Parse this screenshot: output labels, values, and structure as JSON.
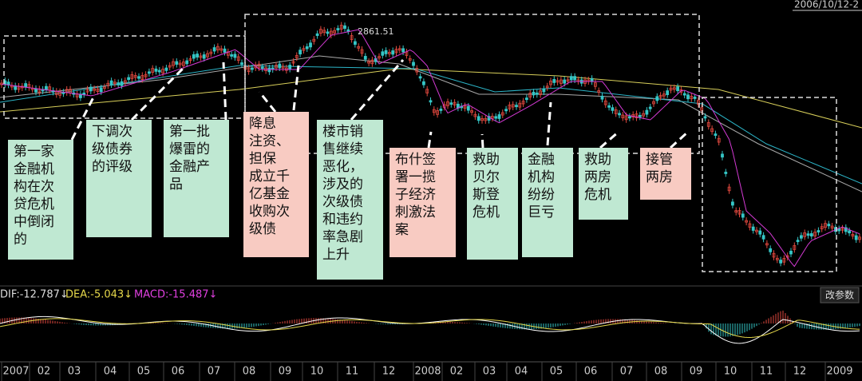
{
  "header": {
    "date": "2006/10/12-2",
    "price_label": "2861.51"
  },
  "annotations": [
    {
      "lines": [
        "第一家",
        "金融机",
        "构在次",
        "贷危机",
        "中倒闭",
        "的"
      ],
      "color": "#bfe8d2"
    },
    {
      "lines": [
        "下调次",
        "级债券",
        "的评级"
      ],
      "color": "#bfe8d2"
    },
    {
      "lines": [
        "第一批",
        "爆雷的",
        "金融产",
        "品"
      ],
      "color": "#bfe8d2"
    },
    {
      "lines": [
        "降息",
        "注资、",
        "担保",
        "成立千",
        "亿基金",
        "收购次",
        "级债"
      ],
      "color": "#f8cbc2"
    },
    {
      "lines": [
        "楼市销",
        "售继续",
        "恶化，",
        "涉及的",
        "次级债",
        "和违约",
        "率急剧",
        "上升"
      ],
      "color": "#bfe8d2"
    },
    {
      "lines": [
        "布什签",
        "署一揽",
        "子经济",
        "刺激法",
        "案"
      ],
      "color": "#f8cbc2"
    },
    {
      "lines": [
        "救助",
        "贝尔",
        "斯登",
        "危机"
      ],
      "color": "#bfe8d2"
    },
    {
      "lines": [
        "金融",
        "机构",
        "纷纷",
        "巨亏"
      ],
      "color": "#bfe8d2"
    },
    {
      "lines": [
        "救助",
        "两房",
        "危机"
      ],
      "color": "#bfe8d2"
    },
    {
      "lines": [
        "接管",
        "两房"
      ],
      "color": "#f8cbc2"
    }
  ],
  "macd": {
    "dif": "DIF:-12.787↓",
    "dea": "DEA:-5.043↓",
    "macd": "MACD:-15.487↓",
    "button": "改参数"
  },
  "x_axis": [
    "2007",
    "02",
    "03",
    "04",
    "05",
    "06",
    "07",
    "08",
    "09",
    "10",
    "11",
    "12",
    "2008",
    "02",
    "03",
    "04",
    "05",
    "06",
    "07",
    "08",
    "09",
    "10",
    "11",
    "12",
    "2009"
  ]
}
